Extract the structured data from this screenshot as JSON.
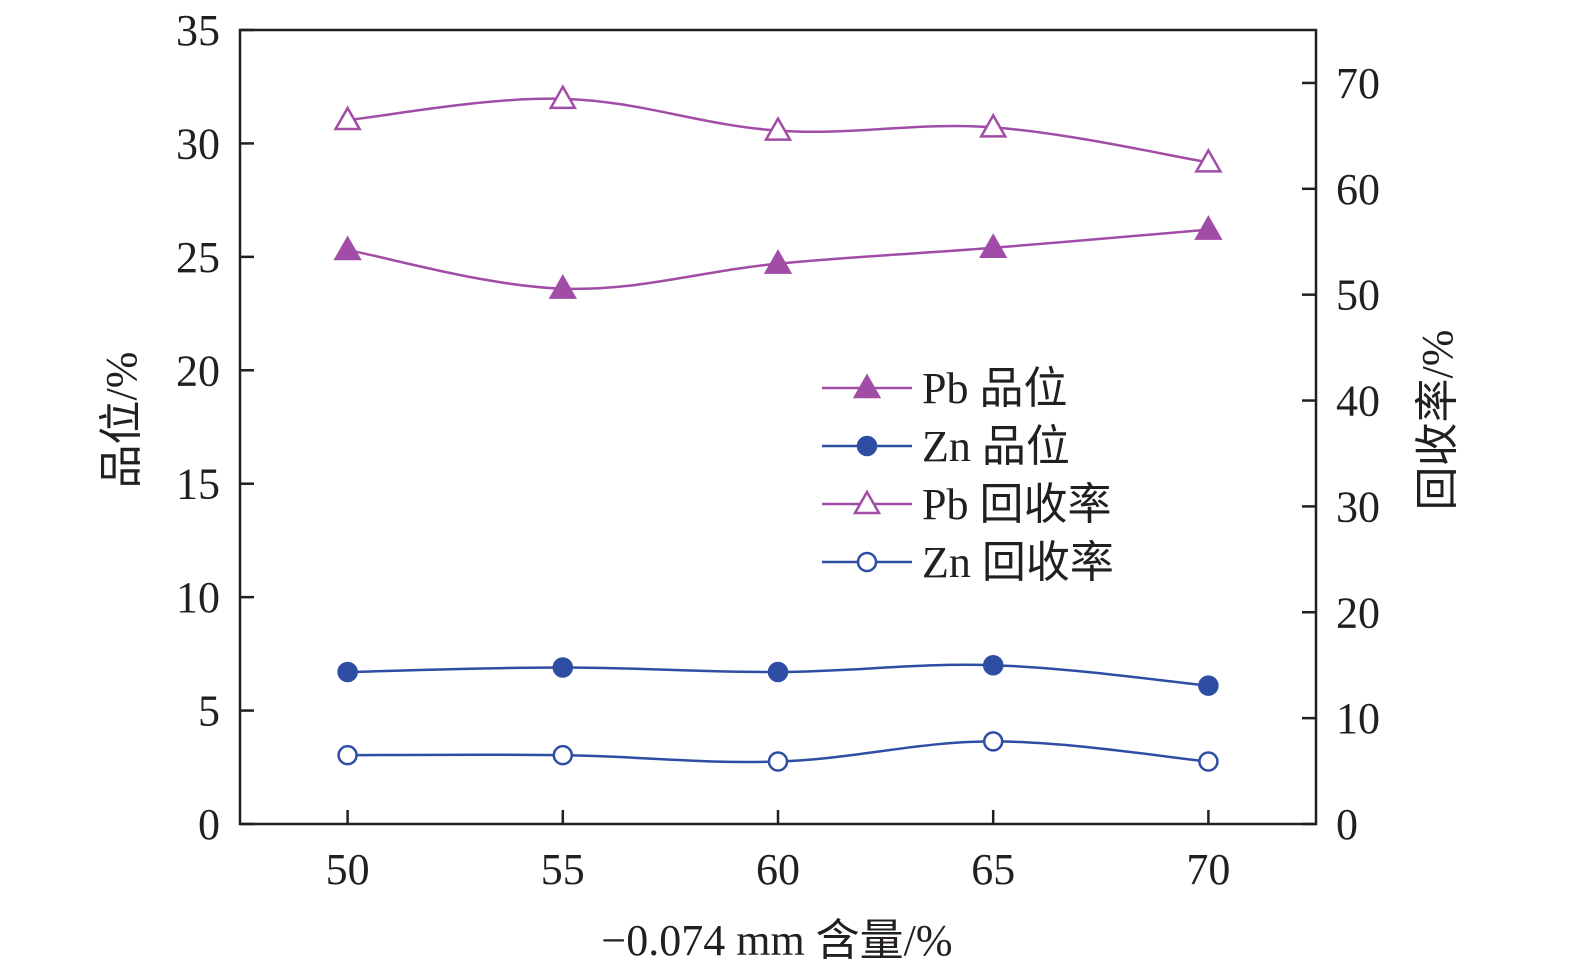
{
  "chart_data": {
    "type": "line",
    "title": "",
    "xlabel": "−0.074 mm 含量/%",
    "ylabel_left": "品位/%",
    "ylabel_right": "回收率/%",
    "x": [
      50,
      55,
      60,
      65,
      70
    ],
    "x_ticks": [
      "50",
      "55",
      "60",
      "65",
      "70"
    ],
    "xlim": [
      47.5,
      72.5
    ],
    "ylim_left": [
      0,
      35
    ],
    "ylim_right": [
      0,
      75
    ],
    "y_ticks_left": [
      "0",
      "5",
      "10",
      "15",
      "20",
      "25",
      "30",
      "35"
    ],
    "y_ticks_right": [
      "0",
      "10",
      "20",
      "30",
      "40",
      "50",
      "60",
      "70"
    ],
    "grid": false,
    "legend_position": "center-right",
    "series": [
      {
        "name": "Pb 品位",
        "axis": "left",
        "values": [
          25.3,
          23.6,
          24.7,
          25.4,
          26.2
        ],
        "color": "#a14ca6",
        "marker": "triangle-filled"
      },
      {
        "name": "Zn 品位",
        "axis": "left",
        "values": [
          6.7,
          6.9,
          6.7,
          7.0,
          6.1
        ],
        "color": "#2e4ea3",
        "marker": "circle-filled"
      },
      {
        "name": "Pb 回收率",
        "axis": "right",
        "values": [
          66.5,
          68.5,
          65.5,
          65.8,
          62.5
        ],
        "color": "#a14ca6",
        "marker": "triangle-open"
      },
      {
        "name": "Zn 回收率",
        "axis": "right",
        "values": [
          6.5,
          6.5,
          5.9,
          7.8,
          5.9
        ],
        "color": "#2e4ea3",
        "marker": "circle-open"
      }
    ]
  }
}
